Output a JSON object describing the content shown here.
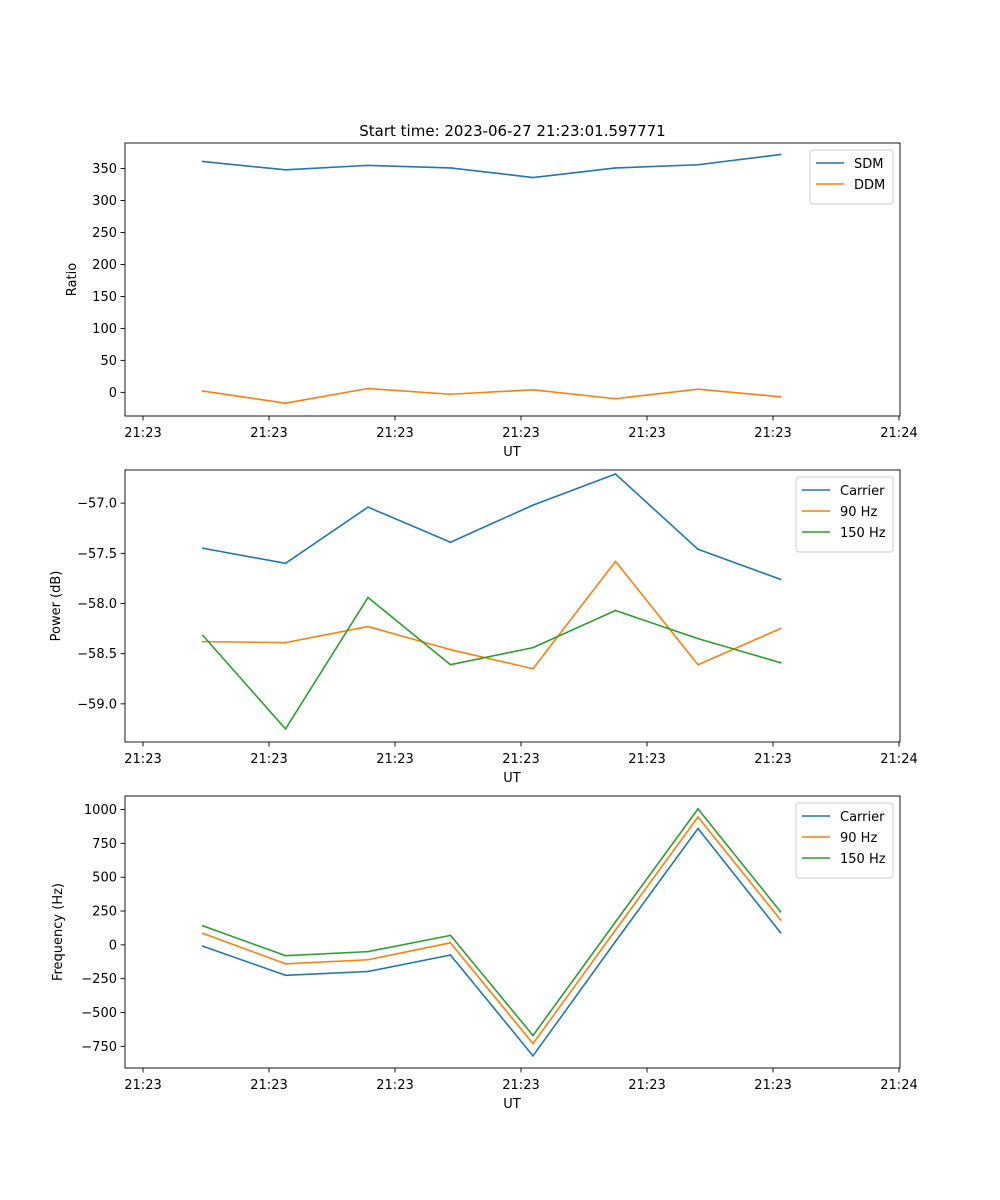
{
  "figure": {
    "title": "Start time: 2023-06-27 21:23:01.597771",
    "colors": {
      "blue": "#1f77b4",
      "orange": "#ff7f0e",
      "green": "#2ca02c"
    }
  },
  "chart_data": [
    {
      "type": "line",
      "title": "Start time: 2023-06-27 21:23:01.597771",
      "xlabel": "UT",
      "ylabel": "Ratio",
      "x_tick_labels": [
        "21:23",
        "21:23",
        "21:23",
        "21:23",
        "21:23",
        "21:23",
        "21:24"
      ],
      "y_tick_labels": [
        "0",
        "50",
        "100",
        "150",
        "200",
        "250",
        "300",
        "350"
      ],
      "y_ticks": [
        0,
        50,
        100,
        150,
        200,
        250,
        300,
        350
      ],
      "ylim": [
        -37,
        390
      ],
      "legend_position": "top-right",
      "grid": false,
      "series": [
        {
          "name": "SDM",
          "color": "#1f77b4",
          "values": [
            361,
            348,
            355,
            351,
            336,
            351,
            356,
            372
          ]
        },
        {
          "name": "DDM",
          "color": "#ff7f0e",
          "values": [
            2,
            -17,
            6,
            -3,
            4,
            -10,
            5,
            -7
          ]
        }
      ]
    },
    {
      "type": "line",
      "xlabel": "UT",
      "ylabel": "Power (dB)",
      "x_tick_labels": [
        "21:23",
        "21:23",
        "21:23",
        "21:23",
        "21:23",
        "21:23",
        "21:24"
      ],
      "y_tick_labels": [
        "−59.0",
        "−58.5",
        "−58.0",
        "−57.5",
        "−57.0"
      ],
      "y_ticks": [
        -59.0,
        -58.5,
        -58.0,
        -57.5,
        -57.0
      ],
      "ylim": [
        -59.38,
        -56.67
      ],
      "legend_position": "top-right",
      "grid": false,
      "series": [
        {
          "name": "Carrier",
          "color": "#1f77b4",
          "values": [
            -57.45,
            -57.6,
            -57.04,
            -57.39,
            -57.02,
            -56.71,
            -57.46,
            -57.76
          ]
        },
        {
          "name": "90 Hz",
          "color": "#ff7f0e",
          "values": [
            -58.38,
            -58.39,
            -58.23,
            -58.46,
            -58.65,
            -57.58,
            -58.61,
            -58.25
          ]
        },
        {
          "name": "150 Hz",
          "color": "#2ca02c",
          "values": [
            -58.32,
            -59.25,
            -57.94,
            -58.61,
            -58.44,
            -58.07,
            -58.35,
            -58.59
          ]
        }
      ]
    },
    {
      "type": "line",
      "xlabel": "UT",
      "ylabel": "Frequency (Hz)",
      "x_tick_labels": [
        "21:23",
        "21:23",
        "21:23",
        "21:23",
        "21:23",
        "21:23",
        "21:24"
      ],
      "y_tick_labels": [
        "−750",
        "−500",
        "−250",
        "0",
        "250",
        "500",
        "750",
        "1000"
      ],
      "y_ticks": [
        -750,
        -500,
        -250,
        0,
        250,
        500,
        750,
        1000
      ],
      "ylim": [
        -910,
        1100
      ],
      "legend_position": "top-right",
      "grid": false,
      "series": [
        {
          "name": "Carrier",
          "color": "#1f77b4",
          "values": [
            -10,
            -225,
            -197,
            -75,
            -820,
            25,
            860,
            90
          ]
        },
        {
          "name": "90 Hz",
          "color": "#ff7f0e",
          "values": [
            85,
            -140,
            -110,
            15,
            -730,
            110,
            945,
            185
          ]
        },
        {
          "name": "150 Hz",
          "color": "#2ca02c",
          "values": [
            140,
            -80,
            -50,
            70,
            -670,
            170,
            1005,
            245
          ]
        }
      ]
    }
  ]
}
